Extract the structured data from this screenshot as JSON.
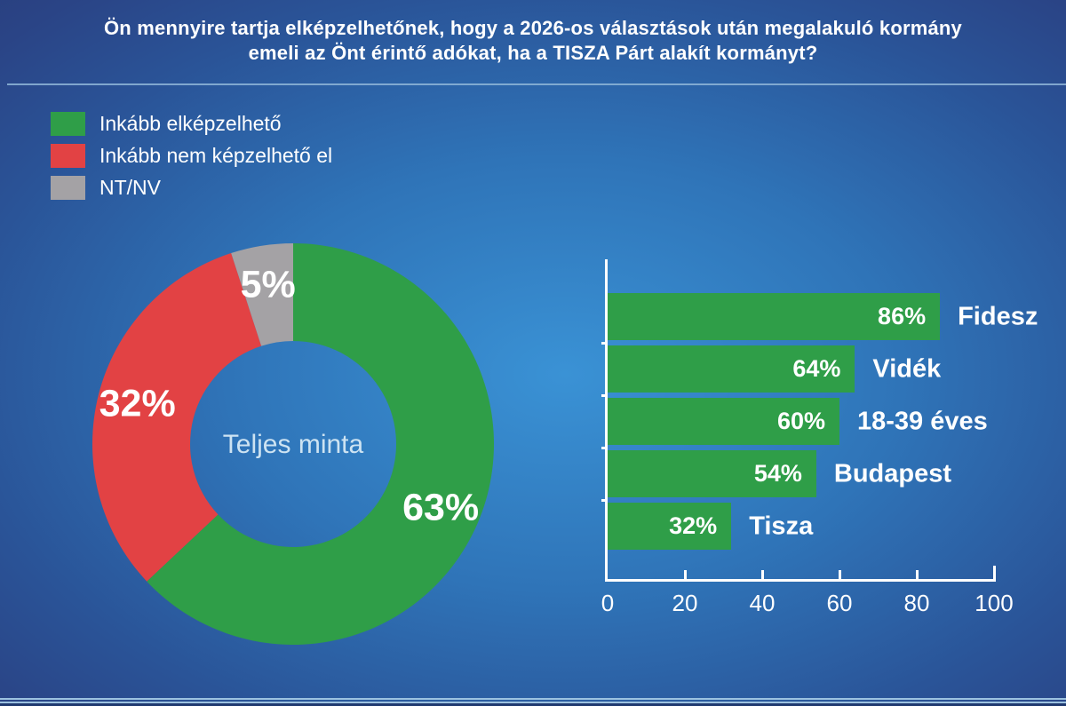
{
  "title": {
    "line1": "Ön mennyire tartja elképzelhetőnek, hogy a 2026-os választások után megalakuló kormány",
    "line2": "emeli az Önt érintő adókat, ha a TISZA Párt alakít kormányt?"
  },
  "legend": {
    "items": [
      {
        "label": "Inkább elképzelhető",
        "color": "#2f9e48"
      },
      {
        "label": "Inkább nem képzelhető el",
        "color": "#e24244"
      },
      {
        "label": "NT/NV",
        "color": "#a4a2a5"
      }
    ]
  },
  "colors": {
    "green": "#2f9e48",
    "red": "#e24244",
    "gray": "#a4a2a5",
    "background_center": "#3a92d5",
    "background_edge": "#283c7a",
    "divider_line": "#8fb6d8",
    "center_label_text": "#cde3f2",
    "text": "#ffffff"
  },
  "chart_data": [
    {
      "type": "pie",
      "subtype": "donut",
      "center_label": "Teljes minta",
      "slices": [
        {
          "label": "Inkább elképzelhető",
          "value": 63,
          "display": "63%",
          "color": "#2f9e48"
        },
        {
          "label": "Inkább nem képzelhető el",
          "value": 32,
          "display": "32%",
          "color": "#e24244"
        },
        {
          "label": "NT/NV",
          "value": 5,
          "display": "5%",
          "color": "#a4a2a5"
        }
      ]
    },
    {
      "type": "bar",
      "orientation": "horizontal",
      "bar_color": "#2f9e48",
      "xlim": [
        0,
        100
      ],
      "xticks": [
        0,
        20,
        40,
        60,
        80,
        100
      ],
      "grid": false,
      "bars": [
        {
          "category": "Fidesz",
          "value": 86,
          "display": "86%"
        },
        {
          "category": "Vidék",
          "value": 64,
          "display": "64%"
        },
        {
          "category": "18-39 éves",
          "value": 60,
          "display": "60%"
        },
        {
          "category": "Budapest",
          "value": 54,
          "display": "54%"
        },
        {
          "category": "Tisza",
          "value": 32,
          "display": "32%"
        }
      ]
    }
  ]
}
